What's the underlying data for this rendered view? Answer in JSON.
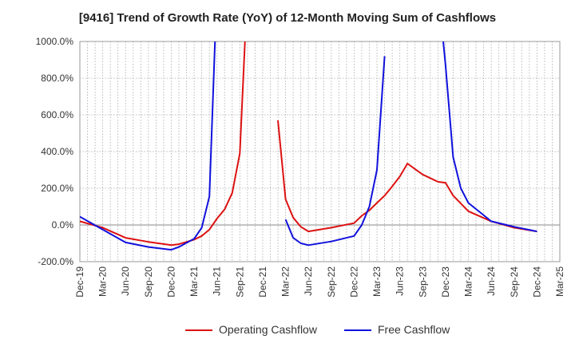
{
  "chart_data": {
    "type": "line",
    "title": "[9416]  Trend of Growth Rate (YoY) of 12-Month Moving Sum of Cashflows",
    "xlabel": "",
    "ylabel": "",
    "ylim": [
      -200,
      1000
    ],
    "y_tick_values": [
      -200,
      0,
      200,
      400,
      600,
      800,
      1000
    ],
    "y_tick_labels": [
      "-200.0%",
      "0.0%",
      "200.0%",
      "400.0%",
      "600.0%",
      "800.0%",
      "1000.0%"
    ],
    "x_start": "2019-12",
    "x_end": "2025-03",
    "x_tick_labels": [
      "Dec-19",
      "Mar-20",
      "Jun-20",
      "Sep-20",
      "Dec-20",
      "Mar-21",
      "Jun-21",
      "Sep-21",
      "Dec-21",
      "Mar-22",
      "Jun-22",
      "Sep-22",
      "Dec-22",
      "Mar-23",
      "Jun-23",
      "Sep-23",
      "Dec-23",
      "Mar-24",
      "Jun-24",
      "Sep-24",
      "Dec-24",
      "Mar-25"
    ],
    "grid": true,
    "legend_position": "bottom",
    "series": [
      {
        "name": "Operating Cashflow",
        "color": "#dd1111",
        "points": [
          [
            "2019-12",
            20
          ],
          [
            "2020-03",
            -15
          ],
          [
            "2020-06",
            -70
          ],
          [
            "2020-09",
            -92
          ],
          [
            "2020-12",
            -110
          ],
          [
            "2021-01",
            -105
          ],
          [
            "2021-03",
            -80
          ],
          [
            "2021-04",
            -60
          ],
          [
            "2021-05",
            -25
          ],
          [
            "2021-06",
            35
          ],
          [
            "2021-07",
            85
          ],
          [
            "2021-08",
            175
          ],
          [
            "2021-09",
            390
          ],
          [
            "2021-10",
            1300
          ],
          null,
          [
            "2022-02",
            570
          ],
          [
            "2022-03",
            140
          ],
          [
            "2022-04",
            40
          ],
          [
            "2022-05",
            -10
          ],
          [
            "2022-06",
            -35
          ],
          [
            "2022-09",
            -15
          ],
          [
            "2022-12",
            10
          ],
          [
            "2023-01",
            50
          ],
          [
            "2023-02",
            80
          ],
          [
            "2023-03",
            120
          ],
          [
            "2023-04",
            160
          ],
          [
            "2023-05",
            210
          ],
          [
            "2023-06",
            265
          ],
          [
            "2023-07",
            335
          ],
          [
            "2023-08",
            305
          ],
          [
            "2023-09",
            275
          ],
          [
            "2023-10",
            255
          ],
          [
            "2023-11",
            235
          ],
          [
            "2023-12",
            230
          ],
          [
            "2024-01",
            160
          ],
          [
            "2024-03",
            75
          ],
          [
            "2024-06",
            20
          ],
          [
            "2024-09",
            -15
          ],
          [
            "2024-12",
            -35
          ]
        ]
      },
      {
        "name": "Free Cashflow",
        "color": "#1111dd",
        "points": [
          [
            "2019-12",
            45
          ],
          [
            "2020-03",
            -25
          ],
          [
            "2020-06",
            -95
          ],
          [
            "2020-09",
            -120
          ],
          [
            "2020-12",
            -135
          ],
          [
            "2021-01",
            -120
          ],
          [
            "2021-03",
            -75
          ],
          [
            "2021-04",
            -15
          ],
          [
            "2021-05",
            155
          ],
          [
            "2021-06",
            1300
          ],
          null,
          [
            "2022-03",
            30
          ],
          [
            "2022-04",
            -70
          ],
          [
            "2022-05",
            -100
          ],
          [
            "2022-06",
            -110
          ],
          [
            "2022-09",
            -90
          ],
          [
            "2022-12",
            -60
          ],
          [
            "2023-01",
            0
          ],
          [
            "2023-02",
            100
          ],
          [
            "2023-03",
            300
          ],
          [
            "2023-04",
            920
          ],
          null,
          [
            "2023-11",
            1300
          ],
          [
            "2023-12",
            870
          ],
          [
            "2024-01",
            370
          ],
          [
            "2024-02",
            200
          ],
          [
            "2024-03",
            120
          ],
          [
            "2024-06",
            20
          ],
          [
            "2024-09",
            -10
          ],
          [
            "2024-12",
            -35
          ]
        ]
      }
    ]
  }
}
